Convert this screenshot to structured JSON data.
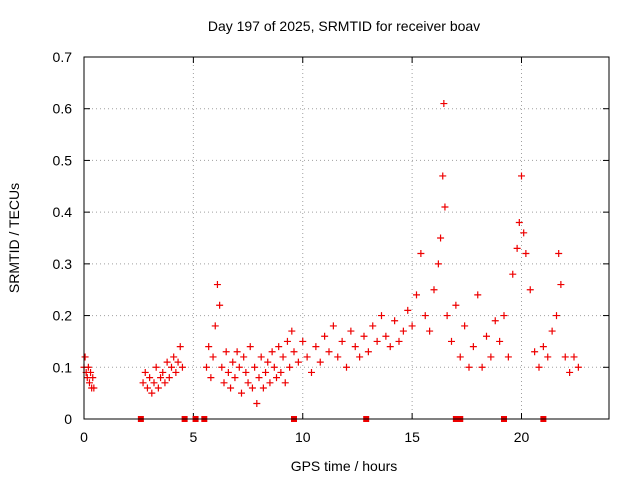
{
  "chart_data": {
    "type": "scatter",
    "title": "Day 197 of 2025, SRMTID for receiver boav",
    "xlabel": "GPS time / hours",
    "ylabel": "SRMTID / TECUs",
    "xlim": [
      0,
      24
    ],
    "ylim": [
      0,
      0.7
    ],
    "x_ticks": [
      0,
      5,
      10,
      15,
      20
    ],
    "y_ticks": [
      0,
      0.1,
      0.2,
      0.3,
      0.4,
      0.5,
      0.6,
      0.7
    ],
    "x_tick_labels": [
      "0",
      "5",
      "10",
      "15",
      "20"
    ],
    "y_tick_labels": [
      "0",
      "0.1",
      "0.2",
      "0.3",
      "0.4",
      "0.5",
      "0.6",
      "0.7"
    ],
    "grid": true,
    "marker": "+",
    "color": "#ee0000",
    "series": [
      {
        "name": "SRMTID",
        "x": [
          0.0,
          0.05,
          0.1,
          0.15,
          0.2,
          0.25,
          0.3,
          0.35,
          0.4,
          0.45,
          2.7,
          2.8,
          2.9,
          3.0,
          3.1,
          3.2,
          3.3,
          3.4,
          3.5,
          3.6,
          3.7,
          3.8,
          3.9,
          4.0,
          4.1,
          4.2,
          4.3,
          4.4,
          4.5,
          5.6,
          5.7,
          5.8,
          5.9,
          6.0,
          6.1,
          6.2,
          6.3,
          6.4,
          6.5,
          6.6,
          6.7,
          6.8,
          6.9,
          7.0,
          7.1,
          7.2,
          7.3,
          7.4,
          7.5,
          7.6,
          7.7,
          7.8,
          7.9,
          8.0,
          8.1,
          8.2,
          8.3,
          8.4,
          8.5,
          8.6,
          8.7,
          8.8,
          8.9,
          9.0,
          9.1,
          9.2,
          9.3,
          9.4,
          9.5,
          9.6,
          9.8,
          10.0,
          10.2,
          10.4,
          10.6,
          10.8,
          11.0,
          11.2,
          11.4,
          11.6,
          11.8,
          12.0,
          12.2,
          12.4,
          12.6,
          12.8,
          13.0,
          13.2,
          13.4,
          13.6,
          13.8,
          14.0,
          14.2,
          14.4,
          14.6,
          14.8,
          15.0,
          15.2,
          15.4,
          15.6,
          15.8,
          16.0,
          16.2,
          16.3,
          16.4,
          16.45,
          16.5,
          16.6,
          16.8,
          17.0,
          17.2,
          17.4,
          17.6,
          17.8,
          18.0,
          18.2,
          18.4,
          18.6,
          18.8,
          19.0,
          19.2,
          19.4,
          19.6,
          19.8,
          19.9,
          20.0,
          20.1,
          20.2,
          20.4,
          20.6,
          20.8,
          21.0,
          21.2,
          21.4,
          21.6,
          21.7,
          21.8,
          22.0,
          22.2,
          22.4,
          22.6
        ],
        "y": [
          0.1,
          0.12,
          0.09,
          0.08,
          0.1,
          0.07,
          0.09,
          0.06,
          0.08,
          0.06,
          0.07,
          0.09,
          0.06,
          0.08,
          0.05,
          0.07,
          0.1,
          0.06,
          0.08,
          0.09,
          0.07,
          0.11,
          0.08,
          0.1,
          0.12,
          0.09,
          0.11,
          0.14,
          0.1,
          0.1,
          0.14,
          0.08,
          0.12,
          0.18,
          0.26,
          0.22,
          0.1,
          0.07,
          0.13,
          0.09,
          0.06,
          0.11,
          0.08,
          0.13,
          0.1,
          0.05,
          0.12,
          0.09,
          0.07,
          0.14,
          0.06,
          0.1,
          0.03,
          0.08,
          0.12,
          0.06,
          0.09,
          0.11,
          0.07,
          0.13,
          0.1,
          0.08,
          0.14,
          0.09,
          0.12,
          0.07,
          0.15,
          0.1,
          0.17,
          0.13,
          0.11,
          0.15,
          0.12,
          0.09,
          0.14,
          0.11,
          0.16,
          0.13,
          0.18,
          0.12,
          0.15,
          0.1,
          0.17,
          0.14,
          0.12,
          0.16,
          0.13,
          0.18,
          0.15,
          0.2,
          0.16,
          0.14,
          0.19,
          0.15,
          0.17,
          0.21,
          0.18,
          0.24,
          0.32,
          0.2,
          0.17,
          0.25,
          0.3,
          0.35,
          0.47,
          0.61,
          0.41,
          0.2,
          0.15,
          0.22,
          0.12,
          0.18,
          0.1,
          0.14,
          0.24,
          0.1,
          0.16,
          0.12,
          0.19,
          0.15,
          0.2,
          0.12,
          0.28,
          0.33,
          0.38,
          0.47,
          0.36,
          0.32,
          0.25,
          0.13,
          0.1,
          0.14,
          0.12,
          0.17,
          0.2,
          0.32,
          0.26,
          0.12,
          0.09,
          0.12,
          0.1
        ],
        "gap_markers_x": [
          2.6,
          4.6,
          5.1,
          5.5,
          9.6,
          12.9,
          17.0,
          17.1,
          17.2,
          19.2,
          21.0
        ]
      }
    ]
  }
}
